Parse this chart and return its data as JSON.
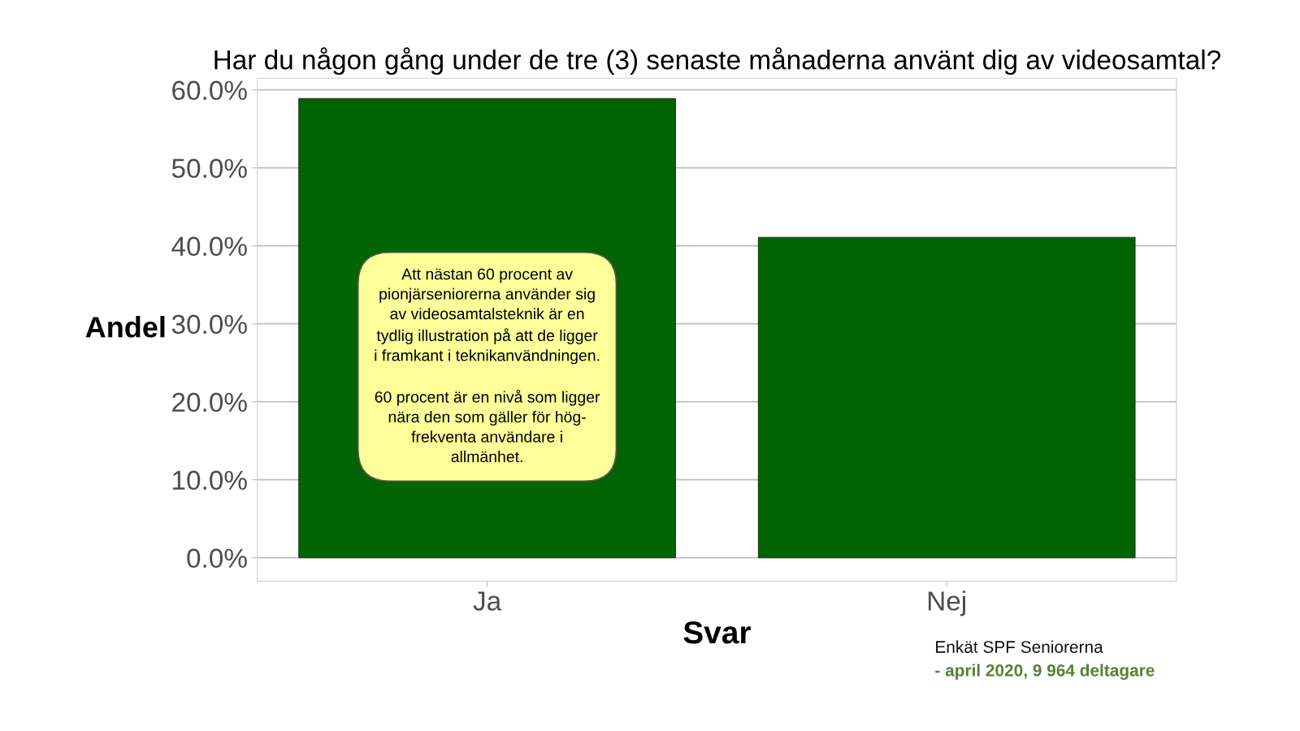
{
  "chart_data": {
    "type": "bar",
    "title": "Har du någon gång under de tre (3) senaste månaderna använt dig av videosamtal?",
    "xlabel": "Svar",
    "ylabel": "Andel",
    "categories": [
      "Ja",
      "Nej"
    ],
    "values": [
      58.9,
      41.1
    ],
    "color": "#006400",
    "ylim": [
      -3,
      61.5
    ],
    "yticks": [
      {
        "value": 0,
        "label": "0.0%"
      },
      {
        "value": 10,
        "label": "10.0%"
      },
      {
        "value": 20,
        "label": "20.0%"
      },
      {
        "value": 30,
        "label": "30.0%"
      },
      {
        "value": 40,
        "label": "40.0%"
      },
      {
        "value": 50,
        "label": "50.0%"
      },
      {
        "value": 60,
        "label": "60.0%"
      }
    ],
    "grid": "y",
    "annotations": [
      "Att nästan 60 procent av\npionjärseniorerna använder sig\nav videosamtalsteknik är en\ntydlig illustration på att de ligger\ni framkant i teknikanvändningen.\n\n60 procent är en nivå som ligger\nnära den som gäller för hög-\nfrekventa användare i\nallmänhet.",
      "Enkät SPF Seniorerna",
      "- april 2020, 9 964 deltagare"
    ]
  }
}
